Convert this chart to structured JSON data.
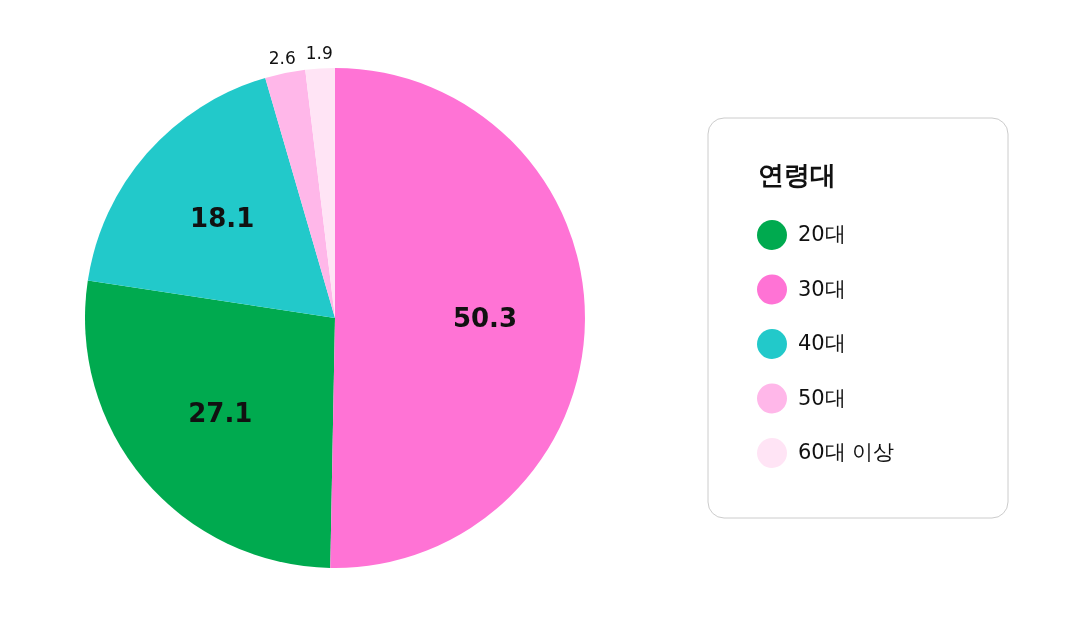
{
  "chart_data": {
    "type": "pie",
    "legend_title": "연령대",
    "categories": [
      "20대",
      "30대",
      "40대",
      "50대",
      "60대 이상"
    ],
    "values": [
      27.1,
      50.3,
      18.1,
      2.6,
      1.9
    ],
    "colors": [
      "#00aa4f",
      "#ff73d5",
      "#22c9ca",
      "#ffb7e9",
      "#ffe4f5"
    ],
    "data_labels": true,
    "legend": "right"
  }
}
